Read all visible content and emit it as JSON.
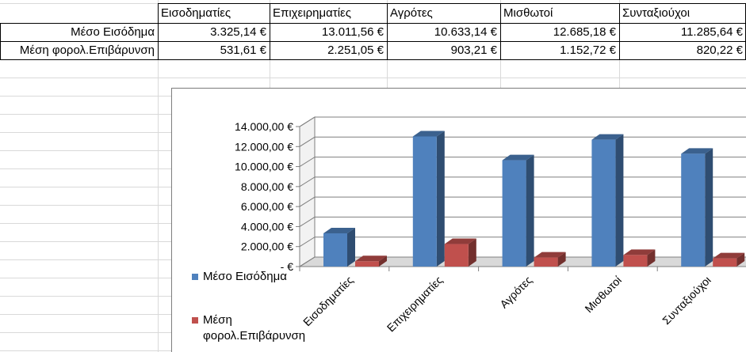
{
  "table": {
    "headers": [
      "Εισοδηματίες",
      "Επιχειρηματίες",
      "Αγρότες",
      "Μισθωτοί",
      "Συνταξιούχοι"
    ],
    "rows": [
      {
        "label": "Μέσο Εισόδημα",
        "values": [
          "3.325,14 €",
          "13.011,56 €",
          "10.633,14 €",
          "12.685,18 €",
          "11.285,64 €"
        ]
      },
      {
        "label": "Μέση φορολ.Επιβάρυνση",
        "values": [
          "531,61 €",
          "2.251,05 €",
          "903,21 €",
          "1.152,72 €",
          "820,22 €"
        ]
      }
    ]
  },
  "chart_data": {
    "type": "bar",
    "categories": [
      "Εισοδηματίες",
      "Επιχειρηματίες",
      "Αγρότες",
      "Μισθωτοί",
      "Συνταξιούχοι"
    ],
    "series": [
      {
        "name": "Μέσο Εισόδημα",
        "values": [
          3325.14,
          13011.56,
          10633.14,
          12685.18,
          11285.64
        ],
        "color": "#4f81bd"
      },
      {
        "name": "Μέση φορολ.Επιβάρυνση",
        "values": [
          531.61,
          2251.05,
          903.21,
          1152.72,
          820.22
        ],
        "color": "#c0504d"
      }
    ],
    "ylim": [
      0,
      14000
    ],
    "ytick_labels": [
      "-   €",
      "2.000,00 €",
      "4.000,00 €",
      "6.000,00 €",
      "8.000,00 €",
      "10.000,00 €",
      "12.000,00 €",
      "14.000,00 €"
    ],
    "grid": true,
    "legend_placement": "left",
    "legend": [
      {
        "lines": [
          "Μέσο Εισόδημα"
        ],
        "color": "#4f81bd"
      },
      {
        "lines": [
          "Μέση",
          "φορολ.Επιβάρυνση"
        ],
        "color": "#c0504d"
      }
    ],
    "title": "",
    "xlabel": "",
    "ylabel": ""
  }
}
